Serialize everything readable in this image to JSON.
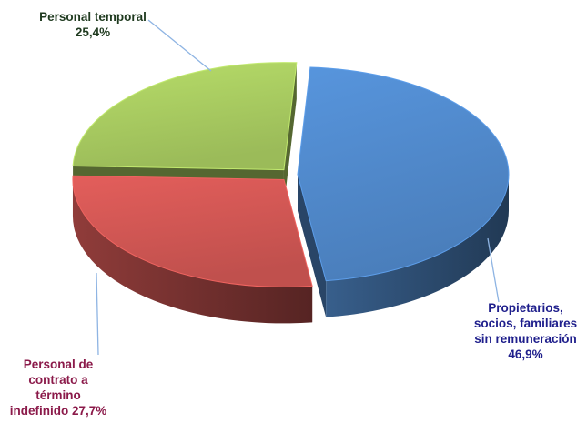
{
  "chart_data": {
    "type": "pie",
    "style": "3d-exploded",
    "legend": "none",
    "slices": [
      {
        "label_lines": [
          "Propietarios,",
          "socios, familiares",
          "sin remuneración"
        ],
        "value_text": "46,9%",
        "value": 46.9,
        "color": "#4a7ebb",
        "label_color": "#1f1f8c"
      },
      {
        "label_lines": [
          "Personal de",
          "contrato a",
          "término"
        ],
        "value_text": "indefinido 27,7%",
        "value": 27.7,
        "color": "#c0504d",
        "label_color": "#8b1a4a"
      },
      {
        "label_lines": [
          "Personal temporal"
        ],
        "value_text": "25,4%",
        "value": 25.4,
        "color": "#9bbb59",
        "label_color": "#1f3a1f"
      }
    ]
  }
}
